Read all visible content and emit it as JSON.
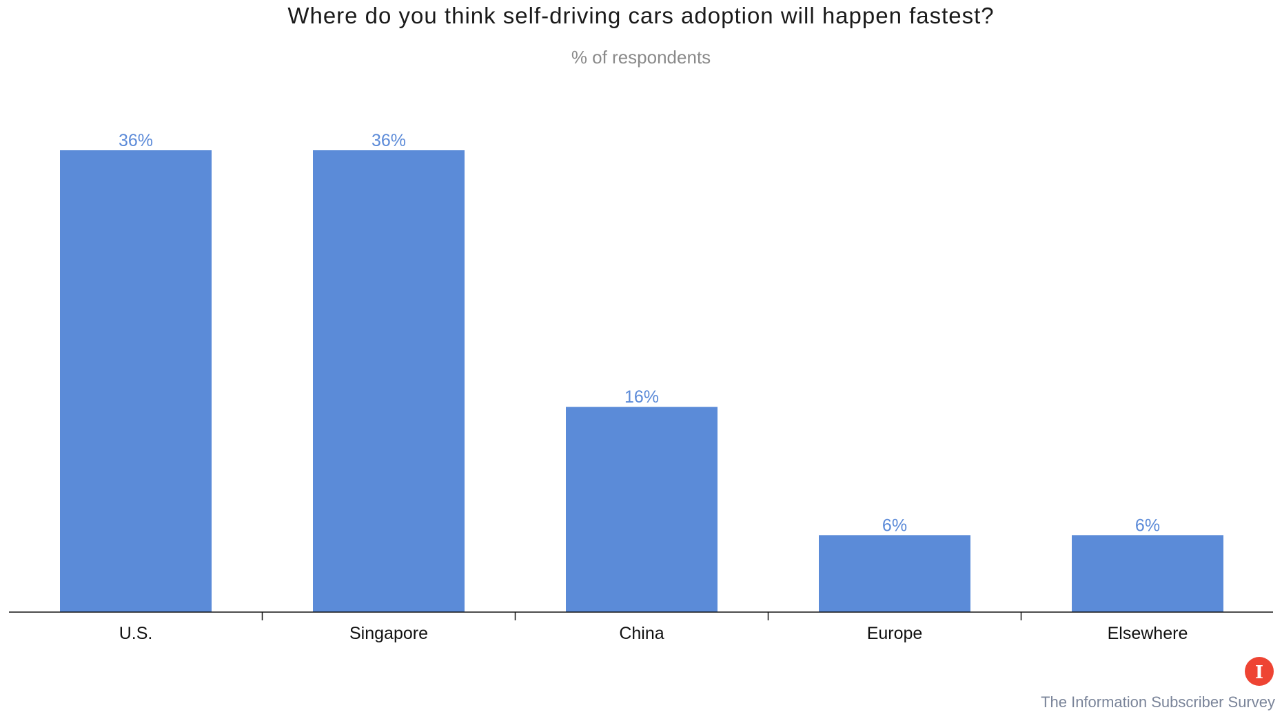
{
  "chart_data": {
    "type": "bar",
    "title": "Where do you think self-driving cars adoption will happen fastest?",
    "subtitle": "% of respondents",
    "categories": [
      "U.S.",
      "Singapore",
      "China",
      "Europe",
      "Elsewhere"
    ],
    "values": [
      36,
      36,
      16,
      6,
      6
    ],
    "value_labels": [
      "36%",
      "36%",
      "16%",
      "6%",
      "6%"
    ],
    "xlabel": "",
    "ylabel": "",
    "ylim": [
      0,
      36
    ],
    "grid": false,
    "bar_color": "#5b8bd8",
    "label_color": "#5b8ad8"
  },
  "source": "The Information Subscriber Survey",
  "logo": {
    "icon": "the-information-logo-icon",
    "letter": "I",
    "color": "#ee4433"
  }
}
